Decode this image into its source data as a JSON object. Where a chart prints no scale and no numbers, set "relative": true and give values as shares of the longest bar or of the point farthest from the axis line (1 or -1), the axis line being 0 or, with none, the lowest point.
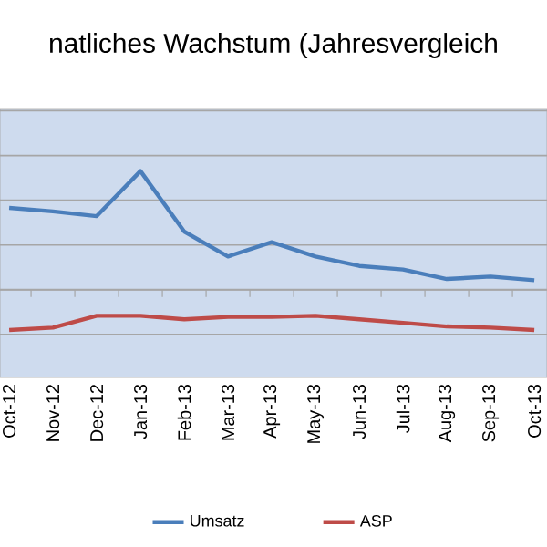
{
  "chart_data": {
    "type": "line",
    "title": "natliches Wachstum (Jahresvergleich",
    "relative": true,
    "categories": [
      "Oct-12",
      "Nov-12",
      "Dec-12",
      "Jan-13",
      "Feb-13",
      "Mar-13",
      "Apr-13",
      "May-13",
      "Jun-13",
      "Jul-13",
      "Aug-13",
      "Sep-13",
      "Oct-13"
    ],
    "series": [
      {
        "name": "Umsatz",
        "color": "#4a7ebb",
        "values": [
          0.69,
          0.66,
          0.62,
          1,
          0.49,
          0.28,
          0.4,
          0.28,
          0.2,
          0.17,
          0.09,
          0.11,
          0.08
        ]
      },
      {
        "name": "ASP",
        "color": "#be4b48",
        "values": [
          -0.34,
          -0.32,
          -0.22,
          -0.22,
          -0.25,
          -0.23,
          -0.23,
          -0.22,
          -0.25,
          -0.28,
          -0.31,
          -0.32,
          -0.34
        ]
      }
    ],
    "grid": "y",
    "legend": "bottom",
    "marker": "none",
    "line_style": "solid"
  }
}
